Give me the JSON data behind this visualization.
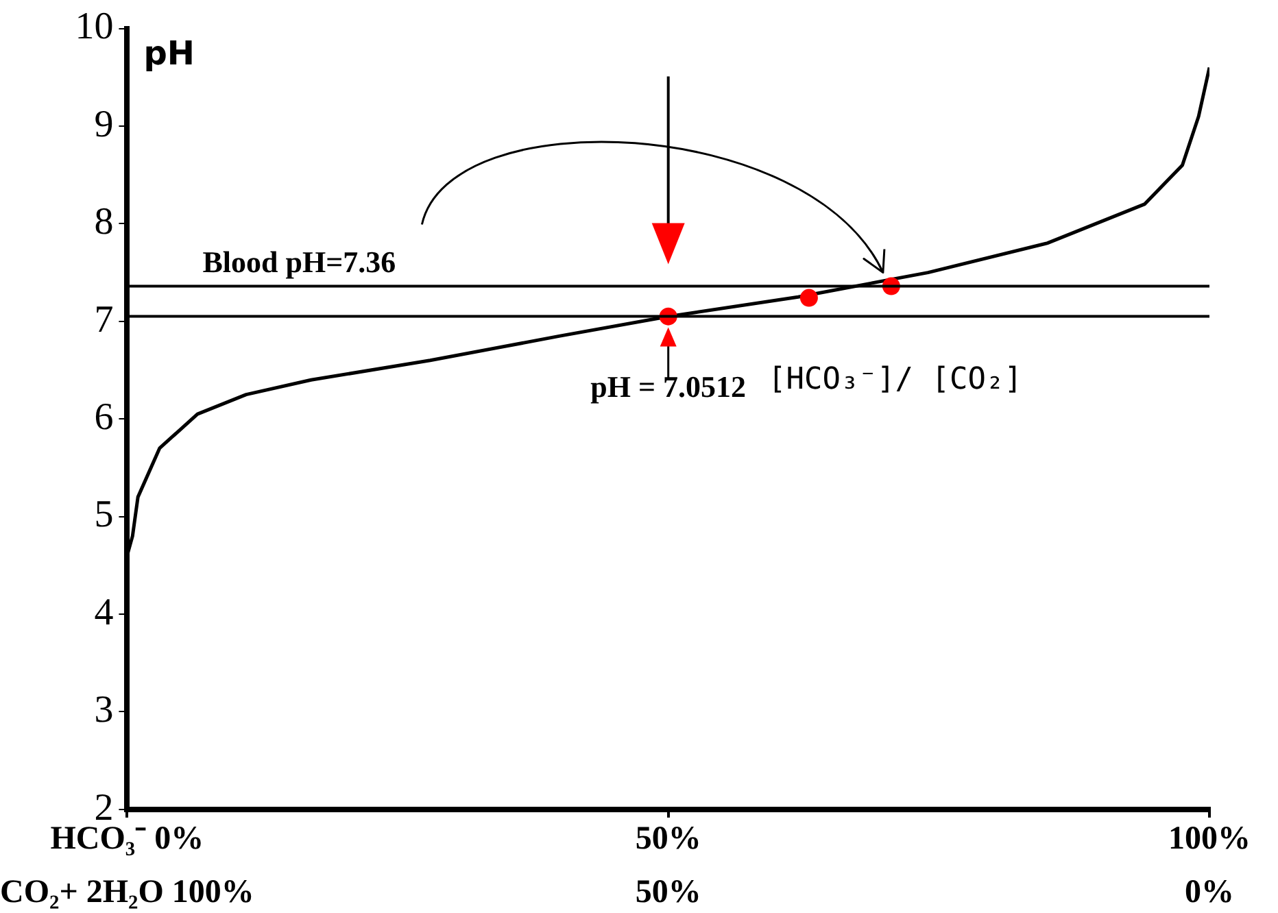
{
  "chart_data": {
    "type": "line",
    "ylabel": "pH",
    "xlim": [
      0,
      100
    ],
    "ylim": [
      2,
      10
    ],
    "xticks": [
      {
        "value": 0,
        "label": "HCO₃⁻ 0%"
      },
      {
        "value": 50,
        "label": "50%"
      },
      {
        "value": 100,
        "label": "100%"
      }
    ],
    "x2lim": [
      100,
      0
    ],
    "x2ticks": [
      {
        "value": 100,
        "label": "CO₂+ 2H₂O 100%"
      },
      {
        "value": 50,
        "label": "50%"
      },
      {
        "value": 0,
        "label": "0%"
      }
    ],
    "yticks": [
      2,
      3,
      4,
      5,
      6,
      7,
      8,
      9,
      10
    ],
    "grid": false,
    "legend": false,
    "ref_lines": [
      {
        "axis": "y",
        "value": 7.36,
        "label": "Blood pH=7.36",
        "color": "#000000"
      },
      {
        "axis": "y",
        "value": 7.0512,
        "label": null,
        "color": "#000000"
      }
    ],
    "annotations": [
      {
        "text": "pH = 7.0512",
        "x": 50,
        "y": 7.0512
      },
      "[HCO₃⁻]/ [CO₂]"
    ],
    "series": [
      {
        "color": "#000000",
        "marker": "none",
        "x": [
          0,
          0.5,
          1,
          3,
          6.5,
          11,
          17,
          28,
          40,
          50,
          62,
          74,
          85,
          94,
          97.5,
          99,
          100
        ],
        "values": [
          4.6,
          4.8,
          5.2,
          5.7,
          6.05,
          6.25,
          6.4,
          6.6,
          6.85,
          7.05,
          7.25,
          7.5,
          7.8,
          8.2,
          8.6,
          9.1,
          9.6
        ]
      },
      {
        "type": "scatter",
        "color": "#ff0000",
        "marker": "circle",
        "x": [
          50,
          63,
          70.6
        ],
        "values": [
          7.05,
          7.24,
          7.36
        ]
      }
    ]
  }
}
